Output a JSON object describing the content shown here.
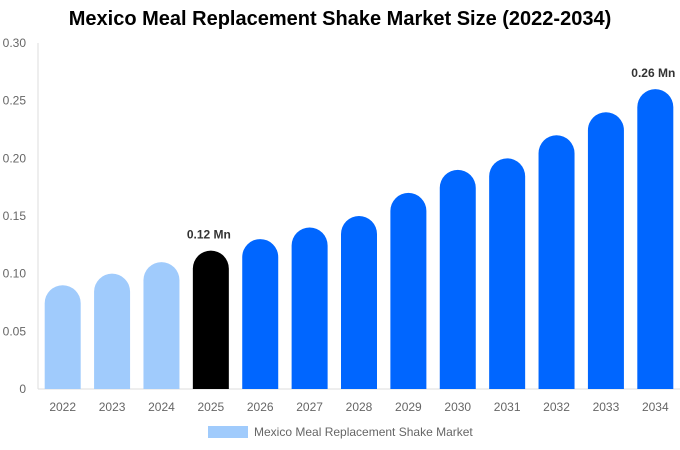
{
  "chart_data": {
    "type": "bar",
    "title": "Mexico Meal Replacement Shake Market Size (2022-2034)",
    "categories": [
      "2022",
      "2023",
      "2024",
      "2025",
      "2026",
      "2027",
      "2028",
      "2029",
      "2030",
      "2031",
      "2032",
      "2033",
      "2034"
    ],
    "series": [
      {
        "name": "Mexico Meal Replacement Shake Market",
        "values": [
          0.09,
          0.1,
          0.11,
          0.12,
          0.13,
          0.14,
          0.15,
          0.17,
          0.19,
          0.2,
          0.22,
          0.24,
          0.26
        ]
      }
    ],
    "ylim": [
      0,
      0.3
    ],
    "yticks": [
      "0",
      "0.05",
      "0.10",
      "0.15",
      "0.20",
      "0.25",
      "0.30"
    ],
    "annotations": [
      {
        "category": "2025",
        "text": "0.12 Mn"
      },
      {
        "category": "2034",
        "text": "0.26 Mn"
      }
    ],
    "grid": false,
    "legend_position": "bottom",
    "colors": {
      "historical": "#a0cbfc",
      "current": "#000000",
      "forecast": "#0066ff"
    }
  }
}
